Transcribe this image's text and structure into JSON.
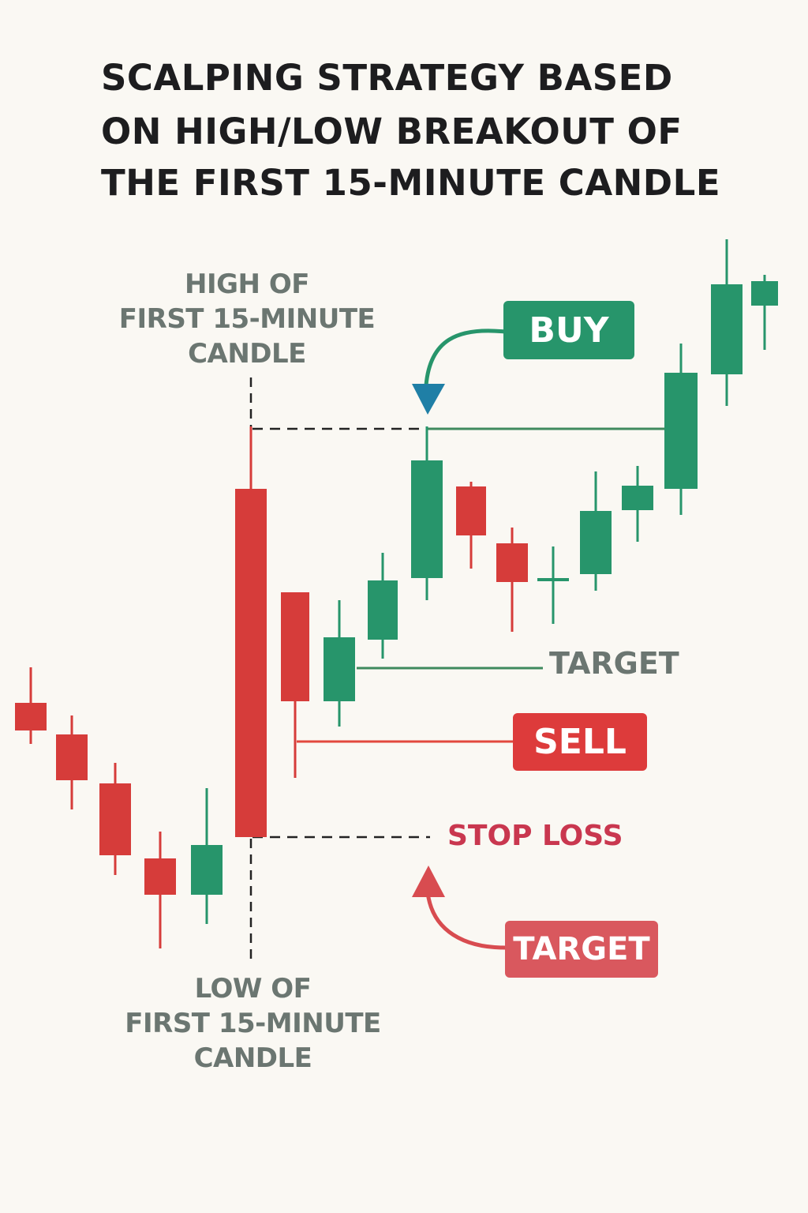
{
  "title": {
    "line1": "SCALPING STRATEGY BASED",
    "line2": "ON HIGH/LOW BREAKOUT OF",
    "line3": "THE FIRST 15-MINUTE CANDLE"
  },
  "annotations": {
    "high_label": [
      "HIGH OF",
      "FIRST 15-MINUTE",
      "CANDLE"
    ],
    "low_label": [
      "LOW OF",
      "FIRST 15-MINUTE",
      "CANDLE"
    ],
    "buy": "BUY",
    "sell": "SELL",
    "target_long": "TARGET",
    "stop_loss": "STOP LOSS",
    "target_short": "TARGET"
  },
  "colors": {
    "bull": "#27956b",
    "bear": "#d63c3a",
    "buy_badge": "#27956b",
    "sell_badge": "#dd3b3b",
    "target_badge": "#d9585e",
    "stop_loss_text": "#c9374f",
    "target_text": "#6b7671",
    "level_line": "#222222"
  },
  "candles": [
    {
      "dir": "bear"
    },
    {
      "dir": "bear"
    },
    {
      "dir": "bear"
    },
    {
      "dir": "bear"
    },
    {
      "dir": "bull"
    },
    {
      "dir": "bear",
      "first_15_minute": true
    },
    {
      "dir": "bear"
    },
    {
      "dir": "bull"
    },
    {
      "dir": "bull"
    },
    {
      "dir": "bull"
    },
    {
      "dir": "bear"
    },
    {
      "dir": "bear"
    },
    {
      "dir": "bull"
    },
    {
      "dir": "bull"
    },
    {
      "dir": "bull"
    },
    {
      "dir": "bull"
    },
    {
      "dir": "bull"
    },
    {
      "dir": "bull"
    }
  ]
}
